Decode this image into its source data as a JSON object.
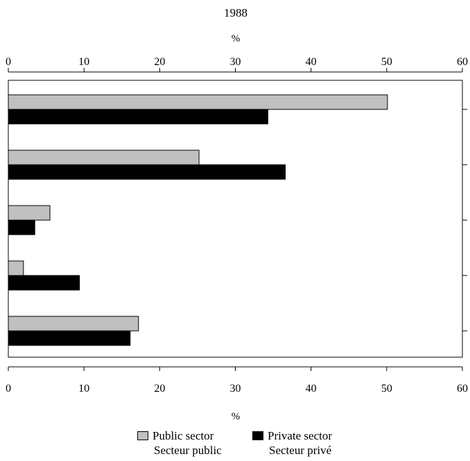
{
  "chart_data": {
    "type": "bar",
    "orientation": "horizontal",
    "title": "1988",
    "top_axis_unit": "%",
    "bottom_axis_unit": "%",
    "xlim": [
      0,
      60
    ],
    "ticks": [
      0,
      10,
      20,
      30,
      40,
      50,
      60
    ],
    "grid": false,
    "legend_position": "bottom",
    "categories": [
      "",
      "",
      "",
      "",
      ""
    ],
    "series": [
      {
        "name": "Public sector / Secteur public",
        "values": [
          50.1,
          25.2,
          5.5,
          2.0,
          17.2
        ],
        "color": "#c0c0c0"
      },
      {
        "name": "Private sector / Secteur privé",
        "values": [
          34.3,
          36.6,
          3.5,
          9.4,
          16.1
        ],
        "color": "#000000"
      }
    ]
  },
  "legend": {
    "public": {
      "label_en": "Public sector",
      "label_fr": "Secteur public"
    },
    "private": {
      "label_en": "Private sector",
      "label_fr": "Secteur privé"
    }
  }
}
